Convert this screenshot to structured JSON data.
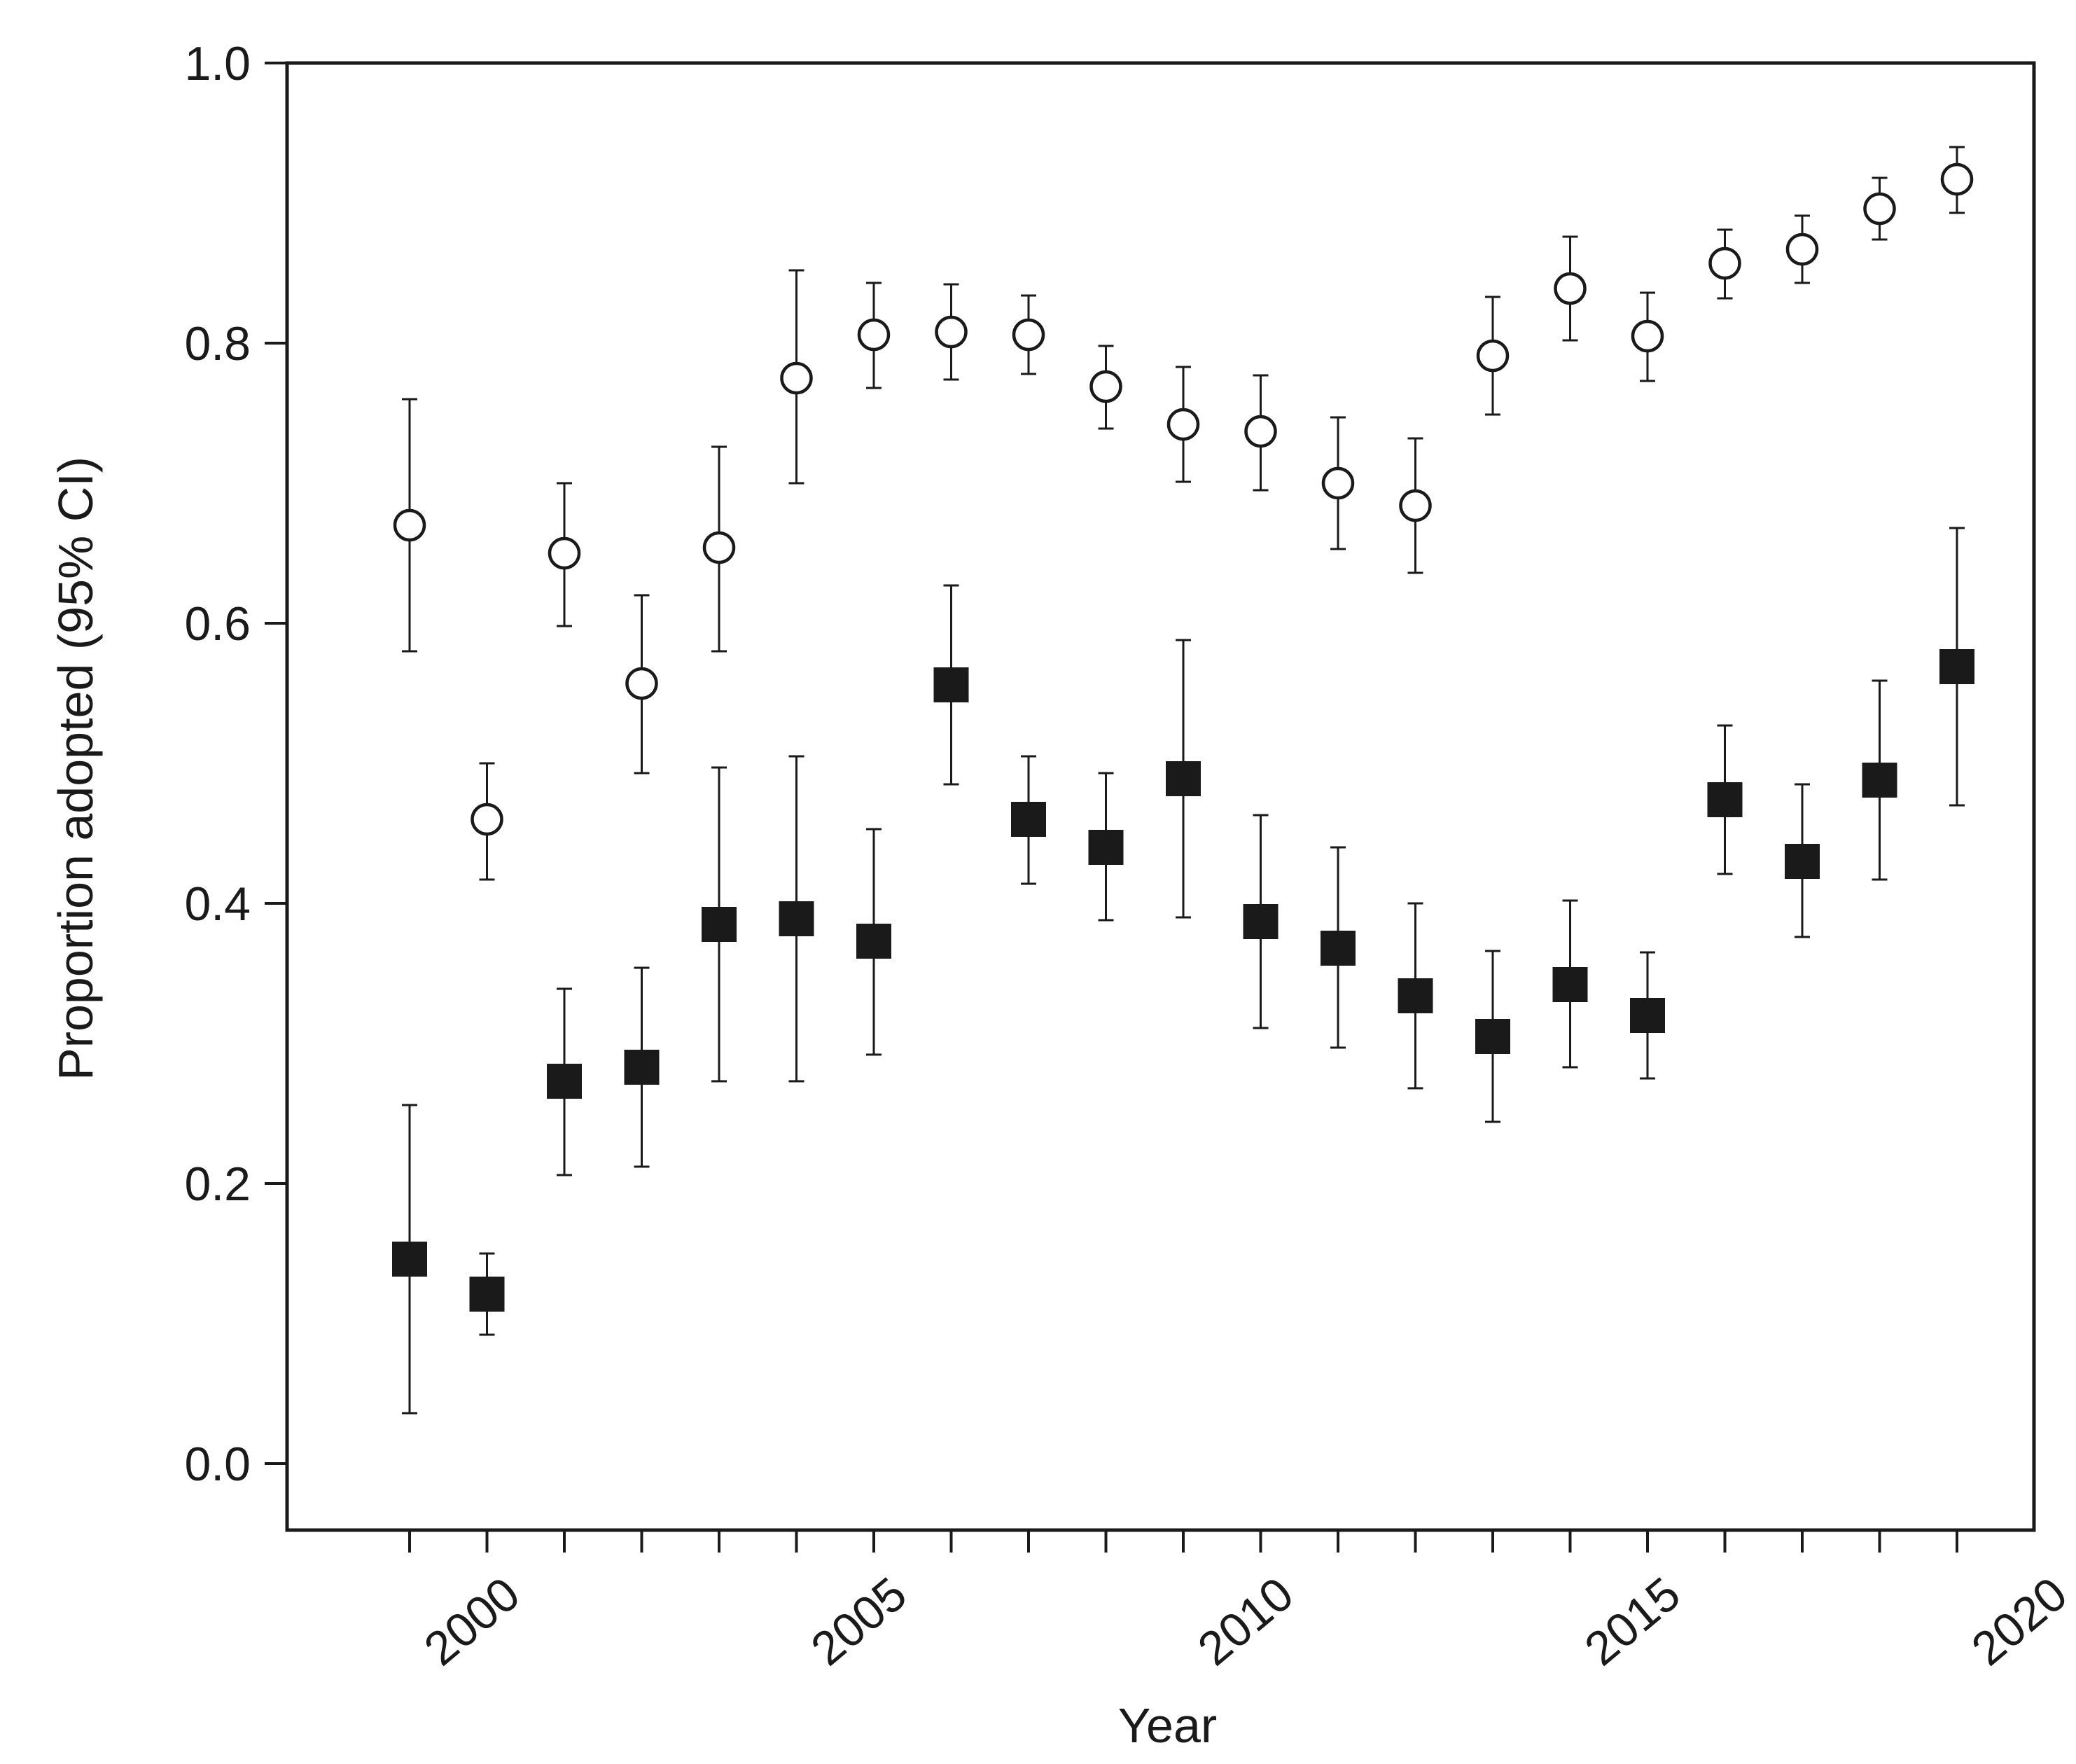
{
  "chart_data": {
    "type": "scatter",
    "title": "",
    "xlabel": "Year",
    "ylabel": "Proportion adopted (95% CI)",
    "xlim": [
      1997.4,
      2020.1
    ],
    "ylim": [
      -0.1,
      1.0
    ],
    "x_ticks": [
      1999,
      2000,
      2001,
      2002,
      2003,
      2004,
      2005,
      2006,
      2007,
      2008,
      2009,
      2010,
      2011,
      2012,
      2013,
      2014,
      2015,
      2016,
      2017,
      2018,
      2019
    ],
    "x_tick_labels": [
      {
        "value": 2000,
        "label": "2000"
      },
      {
        "value": 2005,
        "label": "2005"
      },
      {
        "value": 2010,
        "label": "2010"
      },
      {
        "value": 2015,
        "label": "2015"
      },
      {
        "value": 2020,
        "label": "2020"
      }
    ],
    "y_ticks": [
      {
        "value": 0.0,
        "label": "0.0"
      },
      {
        "value": 0.2,
        "label": "0.2"
      },
      {
        "value": 0.4,
        "label": "0.4"
      },
      {
        "value": 0.6,
        "label": "0.6"
      },
      {
        "value": 0.8,
        "label": "0.8"
      },
      {
        "value": 1.0,
        "label": "1.0"
      }
    ],
    "grid": false,
    "legend": "none",
    "series": [
      {
        "marker": "open-circle",
        "color": "#1a1a1a",
        "points": [
          {
            "x": 1999,
            "y": 0.67,
            "lo": 0.58,
            "hi": 0.76
          },
          {
            "x": 2000,
            "y": 0.46,
            "lo": 0.417,
            "hi": 0.5
          },
          {
            "x": 2001,
            "y": 0.65,
            "lo": 0.598,
            "hi": 0.7
          },
          {
            "x": 2002,
            "y": 0.557,
            "lo": 0.493,
            "hi": 0.62
          },
          {
            "x": 2003,
            "y": 0.654,
            "lo": 0.58,
            "hi": 0.726
          },
          {
            "x": 2004,
            "y": 0.775,
            "lo": 0.7,
            "hi": 0.852
          },
          {
            "x": 2005,
            "y": 0.806,
            "lo": 0.768,
            "hi": 0.843
          },
          {
            "x": 2006,
            "y": 0.808,
            "lo": 0.774,
            "hi": 0.842
          },
          {
            "x": 2007,
            "y": 0.806,
            "lo": 0.778,
            "hi": 0.834
          },
          {
            "x": 2008,
            "y": 0.769,
            "lo": 0.739,
            "hi": 0.798
          },
          {
            "x": 2009,
            "y": 0.742,
            "lo": 0.701,
            "hi": 0.783
          },
          {
            "x": 2010,
            "y": 0.737,
            "lo": 0.695,
            "hi": 0.777
          },
          {
            "x": 2011,
            "y": 0.7,
            "lo": 0.653,
            "hi": 0.747
          },
          {
            "x": 2012,
            "y": 0.684,
            "lo": 0.636,
            "hi": 0.732
          },
          {
            "x": 2013,
            "y": 0.791,
            "lo": 0.749,
            "hi": 0.833
          },
          {
            "x": 2014,
            "y": 0.839,
            "lo": 0.802,
            "hi": 0.876
          },
          {
            "x": 2015,
            "y": 0.805,
            "lo": 0.773,
            "hi": 0.836
          },
          {
            "x": 2016,
            "y": 0.857,
            "lo": 0.832,
            "hi": 0.881
          },
          {
            "x": 2017,
            "y": 0.867,
            "lo": 0.843,
            "hi": 0.891
          },
          {
            "x": 2018,
            "y": 0.896,
            "lo": 0.874,
            "hi": 0.918
          },
          {
            "x": 2019,
            "y": 0.917,
            "lo": 0.893,
            "hi": 0.94
          }
        ]
      },
      {
        "marker": "filled-square",
        "color": "#1a1a1a",
        "points": [
          {
            "x": 1999,
            "y": 0.146,
            "lo": 0.036,
            "hi": 0.256
          },
          {
            "x": 2000,
            "y": 0.121,
            "lo": 0.092,
            "hi": 0.15
          },
          {
            "x": 2001,
            "y": 0.273,
            "lo": 0.206,
            "hi": 0.339
          },
          {
            "x": 2002,
            "y": 0.283,
            "lo": 0.212,
            "hi": 0.354
          },
          {
            "x": 2003,
            "y": 0.385,
            "lo": 0.273,
            "hi": 0.497
          },
          {
            "x": 2004,
            "y": 0.389,
            "lo": 0.273,
            "hi": 0.505
          },
          {
            "x": 2005,
            "y": 0.373,
            "lo": 0.292,
            "hi": 0.453
          },
          {
            "x": 2006,
            "y": 0.556,
            "lo": 0.485,
            "hi": 0.627
          },
          {
            "x": 2007,
            "y": 0.46,
            "lo": 0.414,
            "hi": 0.505
          },
          {
            "x": 2008,
            "y": 0.44,
            "lo": 0.388,
            "hi": 0.493
          },
          {
            "x": 2009,
            "y": 0.489,
            "lo": 0.39,
            "hi": 0.588
          },
          {
            "x": 2010,
            "y": 0.387,
            "lo": 0.311,
            "hi": 0.463
          },
          {
            "x": 2011,
            "y": 0.368,
            "lo": 0.297,
            "hi": 0.44
          },
          {
            "x": 2012,
            "y": 0.334,
            "lo": 0.268,
            "hi": 0.4
          },
          {
            "x": 2013,
            "y": 0.305,
            "lo": 0.244,
            "hi": 0.366
          },
          {
            "x": 2014,
            "y": 0.342,
            "lo": 0.283,
            "hi": 0.402
          },
          {
            "x": 2015,
            "y": 0.32,
            "lo": 0.275,
            "hi": 0.365
          },
          {
            "x": 2016,
            "y": 0.474,
            "lo": 0.421,
            "hi": 0.527
          },
          {
            "x": 2017,
            "y": 0.43,
            "lo": 0.376,
            "hi": 0.485
          },
          {
            "x": 2018,
            "y": 0.488,
            "lo": 0.417,
            "hi": 0.559
          },
          {
            "x": 2019,
            "y": 0.569,
            "lo": 0.47,
            "hi": 0.668
          }
        ]
      }
    ]
  }
}
